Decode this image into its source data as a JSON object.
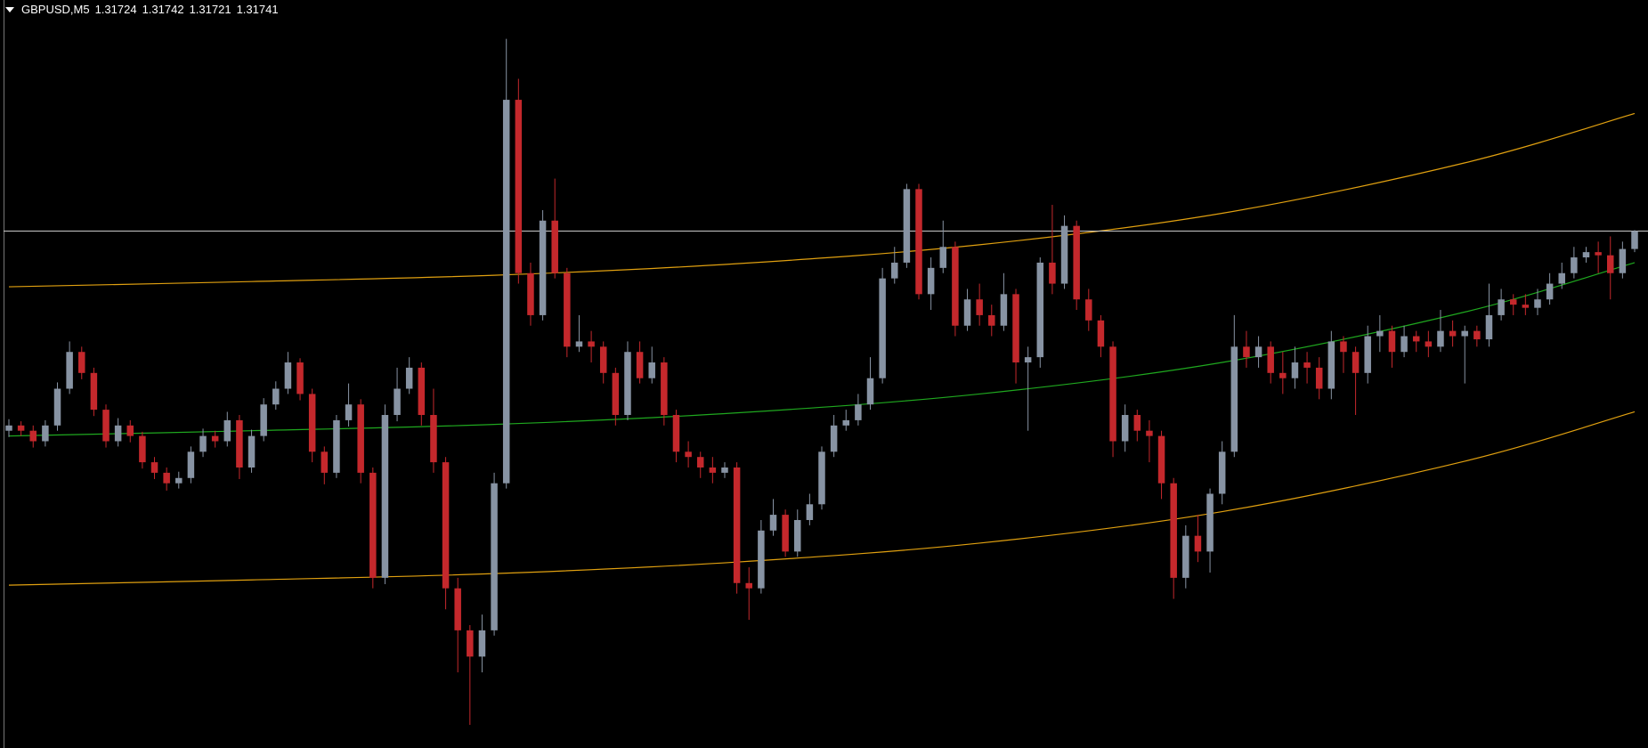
{
  "chart_data": {
    "type": "candlestick",
    "title": "GBPUSD,M5",
    "quote": [
      1.31724,
      1.31742,
      1.31721,
      1.31741
    ],
    "ylim": [
      1.31249,
      1.31961
    ],
    "bull_color": "#8793a3",
    "bear_color": "#c4282c",
    "open": [
      1.31551,
      1.31556,
      1.31551,
      1.31541,
      1.31556,
      1.31591,
      1.31626,
      1.31606,
      1.31571,
      1.31541,
      1.31556,
      1.31546,
      1.31521,
      1.31511,
      1.31501,
      1.31506,
      1.31531,
      1.31546,
      1.31541,
      1.31561,
      1.31516,
      1.31546,
      1.31576,
      1.31591,
      1.31616,
      1.31586,
      1.31531,
      1.31511,
      1.31561,
      1.31576,
      1.31511,
      1.31411,
      1.31566,
      1.31591,
      1.31611,
      1.31566,
      1.31521,
      1.31401,
      1.31361,
      1.31336,
      1.31361,
      1.31501,
      1.31866,
      1.31701,
      1.31661,
      1.31751,
      1.31701,
      1.31631,
      1.31636,
      1.31631,
      1.31606,
      1.31566,
      1.31626,
      1.31601,
      1.31616,
      1.31566,
      1.31531,
      1.31526,
      1.31516,
      1.31511,
      1.31516,
      1.31406,
      1.31401,
      1.31456,
      1.31471,
      1.31436,
      1.31466,
      1.31481,
      1.31531,
      1.31556,
      1.31561,
      1.31576,
      1.31601,
      1.31696,
      1.31711,
      1.31781,
      1.31681,
      1.31706,
      1.31726,
      1.31651,
      1.31676,
      1.31661,
      1.31651,
      1.31681,
      1.31616,
      1.31621,
      1.31711,
      1.31691,
      1.31746,
      1.31676,
      1.31656,
      1.31631,
      1.31541,
      1.31566,
      1.31551,
      1.31546,
      1.31501,
      1.31411,
      1.31451,
      1.31436,
      1.31491,
      1.31531,
      1.31631,
      1.31621,
      1.31631,
      1.31606,
      1.31601,
      1.31616,
      1.31611,
      1.31591,
      1.31636,
      1.31626,
      1.31606,
      1.31641,
      1.31646,
      1.31626,
      1.31641,
      1.31636,
      1.31631,
      1.31646,
      1.31641,
      1.31646,
      1.31638,
      1.31661,
      1.31676,
      1.31671,
      1.31668,
      1.31676,
      1.31691,
      1.31701,
      1.31716,
      1.31721,
      1.31718,
      1.31701,
      1.31724
    ],
    "high": [
      1.31562,
      1.3156,
      1.31556,
      1.31561,
      1.31597,
      1.31636,
      1.31631,
      1.31611,
      1.31576,
      1.31563,
      1.31561,
      1.3155,
      1.31526,
      1.31516,
      1.31512,
      1.31536,
      1.31553,
      1.31551,
      1.31569,
      1.31566,
      1.31552,
      1.31582,
      1.31598,
      1.31626,
      1.3162,
      1.31591,
      1.31536,
      1.31566,
      1.31596,
      1.31581,
      1.31516,
      1.31576,
      1.31611,
      1.31621,
      1.31616,
      1.31591,
      1.31526,
      1.31411,
      1.31366,
      1.31376,
      1.31511,
      1.31924,
      1.31886,
      1.31711,
      1.31761,
      1.31791,
      1.31706,
      1.31661,
      1.31646,
      1.31636,
      1.31611,
      1.31636,
      1.31636,
      1.31631,
      1.31621,
      1.31571,
      1.31541,
      1.31531,
      1.31526,
      1.31521,
      1.31521,
      1.31421,
      1.31466,
      1.31486,
      1.31476,
      1.31476,
      1.31491,
      1.31536,
      1.31566,
      1.31571,
      1.31586,
      1.31621,
      1.31706,
      1.31726,
      1.31786,
      1.31786,
      1.31716,
      1.31751,
      1.31731,
      1.31686,
      1.31691,
      1.31671,
      1.31701,
      1.31686,
      1.31631,
      1.31716,
      1.31766,
      1.31756,
      1.31751,
      1.31686,
      1.31661,
      1.31636,
      1.31576,
      1.31571,
      1.31561,
      1.31551,
      1.31506,
      1.31461,
      1.31471,
      1.31496,
      1.31541,
      1.31661,
      1.31646,
      1.31641,
      1.31636,
      1.31626,
      1.31631,
      1.31626,
      1.31621,
      1.31646,
      1.31641,
      1.31631,
      1.31651,
      1.31661,
      1.31651,
      1.31651,
      1.31646,
      1.31646,
      1.31666,
      1.31656,
      1.31651,
      1.31651,
      1.31691,
      1.31686,
      1.31681,
      1.31681,
      1.31686,
      1.31701,
      1.31711,
      1.31726,
      1.31726,
      1.31731,
      1.31736,
      1.31731,
      1.31742
    ],
    "low": [
      1.31545,
      1.31546,
      1.31535,
      1.31536,
      1.31551,
      1.31586,
      1.316,
      1.31565,
      1.31535,
      1.31536,
      1.3154,
      1.31515,
      1.31505,
      1.31494,
      1.31496,
      1.31501,
      1.31526,
      1.31535,
      1.31536,
      1.31505,
      1.31511,
      1.31541,
      1.31571,
      1.31586,
      1.3158,
      1.31521,
      1.315,
      1.31506,
      1.31555,
      1.31501,
      1.31401,
      1.31405,
      1.3156,
      1.31586,
      1.31556,
      1.31511,
      1.31381,
      1.31321,
      1.31271,
      1.31321,
      1.31356,
      1.31496,
      1.31691,
      1.31651,
      1.31656,
      1.31696,
      1.31621,
      1.31626,
      1.31616,
      1.31596,
      1.31556,
      1.31561,
      1.31596,
      1.31596,
      1.31556,
      1.31521,
      1.31516,
      1.31506,
      1.31501,
      1.31506,
      1.31396,
      1.31371,
      1.31396,
      1.31451,
      1.31431,
      1.31431,
      1.31461,
      1.31476,
      1.31526,
      1.31551,
      1.31556,
      1.31571,
      1.31596,
      1.31691,
      1.31706,
      1.31676,
      1.31666,
      1.31701,
      1.31641,
      1.31646,
      1.31651,
      1.31641,
      1.31646,
      1.31596,
      1.31551,
      1.31611,
      1.31681,
      1.31686,
      1.31666,
      1.31646,
      1.31621,
      1.31526,
      1.31531,
      1.31541,
      1.31521,
      1.31486,
      1.31391,
      1.31401,
      1.31426,
      1.31416,
      1.31481,
      1.31526,
      1.31611,
      1.31611,
      1.31596,
      1.31586,
      1.31591,
      1.31596,
      1.31581,
      1.31581,
      1.31606,
      1.31566,
      1.31596,
      1.31626,
      1.31611,
      1.31621,
      1.31626,
      1.31621,
      1.31626,
      1.31631,
      1.31596,
      1.31631,
      1.31631,
      1.31656,
      1.31661,
      1.31661,
      1.31661,
      1.31671,
      1.31686,
      1.31696,
      1.31711,
      1.31701,
      1.31676,
      1.31696,
      1.31721
    ],
    "close": [
      1.31556,
      1.31551,
      1.31541,
      1.31556,
      1.31591,
      1.31626,
      1.31606,
      1.31571,
      1.31541,
      1.31556,
      1.31546,
      1.31521,
      1.31511,
      1.31501,
      1.31506,
      1.31531,
      1.31546,
      1.31541,
      1.31561,
      1.31516,
      1.31546,
      1.31576,
      1.31591,
      1.31616,
      1.31586,
      1.31531,
      1.31511,
      1.31561,
      1.31576,
      1.31511,
      1.31411,
      1.31566,
      1.31591,
      1.31611,
      1.31566,
      1.31521,
      1.31401,
      1.31361,
      1.31336,
      1.31361,
      1.31501,
      1.31866,
      1.31701,
      1.31661,
      1.31751,
      1.31701,
      1.31631,
      1.31636,
      1.31631,
      1.31606,
      1.31566,
      1.31626,
      1.31601,
      1.31616,
      1.31566,
      1.31531,
      1.31526,
      1.31516,
      1.31511,
      1.31516,
      1.31406,
      1.31401,
      1.31456,
      1.31471,
      1.31436,
      1.31466,
      1.31481,
      1.31531,
      1.31556,
      1.31561,
      1.31576,
      1.31601,
      1.31696,
      1.31711,
      1.31781,
      1.31681,
      1.31706,
      1.31726,
      1.31651,
      1.31676,
      1.31661,
      1.31651,
      1.31681,
      1.31616,
      1.31621,
      1.31711,
      1.31691,
      1.31746,
      1.31676,
      1.31656,
      1.31631,
      1.31541,
      1.31566,
      1.31551,
      1.31546,
      1.31501,
      1.31411,
      1.31451,
      1.31436,
      1.31491,
      1.31531,
      1.31631,
      1.31621,
      1.31631,
      1.31606,
      1.31601,
      1.31616,
      1.31611,
      1.31591,
      1.31636,
      1.31626,
      1.31606,
      1.31641,
      1.31646,
      1.31626,
      1.31641,
      1.31636,
      1.31631,
      1.31646,
      1.31641,
      1.31646,
      1.31638,
      1.31661,
      1.31676,
      1.31671,
      1.31668,
      1.31676,
      1.31691,
      1.31701,
      1.31716,
      1.31721,
      1.31718,
      1.31701,
      1.31724,
      1.31741
    ],
    "bid_color": "#c8c8c8",
    "series": [
      {
        "color": "#e0a010",
        "x": [
          0,
          20,
          40,
          60,
          80,
          100,
          120,
          134
        ],
        "values": [
          1.31688,
          1.31693,
          1.31699,
          1.3171,
          1.31728,
          1.31758,
          1.31806,
          1.31853
        ]
      },
      {
        "color": "#1fa81f",
        "x": [
          0,
          20,
          40,
          60,
          80,
          100,
          120,
          134
        ],
        "values": [
          1.31546,
          1.31551,
          1.31557,
          1.31568,
          1.31586,
          1.31616,
          1.31664,
          1.31711
        ]
      },
      {
        "color": "#e0a010",
        "x": [
          0,
          20,
          40,
          60,
          80,
          100,
          120,
          134
        ],
        "values": [
          1.31404,
          1.31409,
          1.31415,
          1.31426,
          1.31444,
          1.31474,
          1.31522,
          1.31569
        ]
      }
    ]
  }
}
